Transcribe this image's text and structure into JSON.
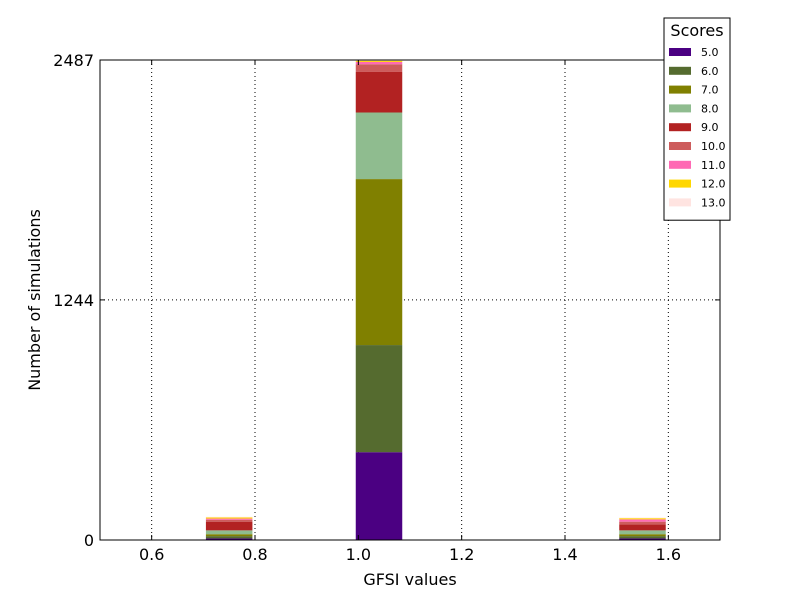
{
  "chart_data": {
    "type": "bar",
    "stacked": true,
    "xlabel": "GFSI values",
    "ylabel": "Number of simulations",
    "xlim": [
      0.5,
      1.7
    ],
    "ylim": [
      0,
      2487
    ],
    "xticks": [
      0.6,
      0.8,
      1.0,
      1.2,
      1.4,
      1.6
    ],
    "xtick_labels": [
      "0.6",
      "0.8",
      "1.0",
      "1.2",
      "1.4",
      "1.6"
    ],
    "yticks": [
      0,
      1244,
      2487
    ],
    "ytick_labels": [
      "0",
      "1244",
      "2487"
    ],
    "grid": true,
    "bar_width": 0.09,
    "legend": {
      "title": "Scores",
      "position": "top-right"
    },
    "x": [
      0.75,
      1.04,
      1.55
    ],
    "series": [
      {
        "name": "5.0",
        "color": "#4b0082",
        "values": [
          8,
          455,
          8
        ]
      },
      {
        "name": "6.0",
        "color": "#556b2f",
        "values": [
          12,
          555,
          12
        ]
      },
      {
        "name": "7.0",
        "color": "#808000",
        "values": [
          10,
          860,
          10
        ]
      },
      {
        "name": "8.0",
        "color": "#8fbc8f",
        "values": [
          20,
          345,
          20
        ]
      },
      {
        "name": "9.0",
        "color": "#b22222",
        "values": [
          45,
          210,
          30
        ]
      },
      {
        "name": "10.0",
        "color": "#cd5c5c",
        "values": [
          10,
          40,
          15
        ]
      },
      {
        "name": "11.0",
        "color": "#ff69b4",
        "values": [
          6,
          12,
          12
        ]
      },
      {
        "name": "12.0",
        "color": "#ffd700",
        "values": [
          6,
          6,
          6
        ]
      },
      {
        "name": "13.0",
        "color": "#ffe4e1",
        "values": [
          3,
          4,
          3
        ]
      }
    ]
  }
}
